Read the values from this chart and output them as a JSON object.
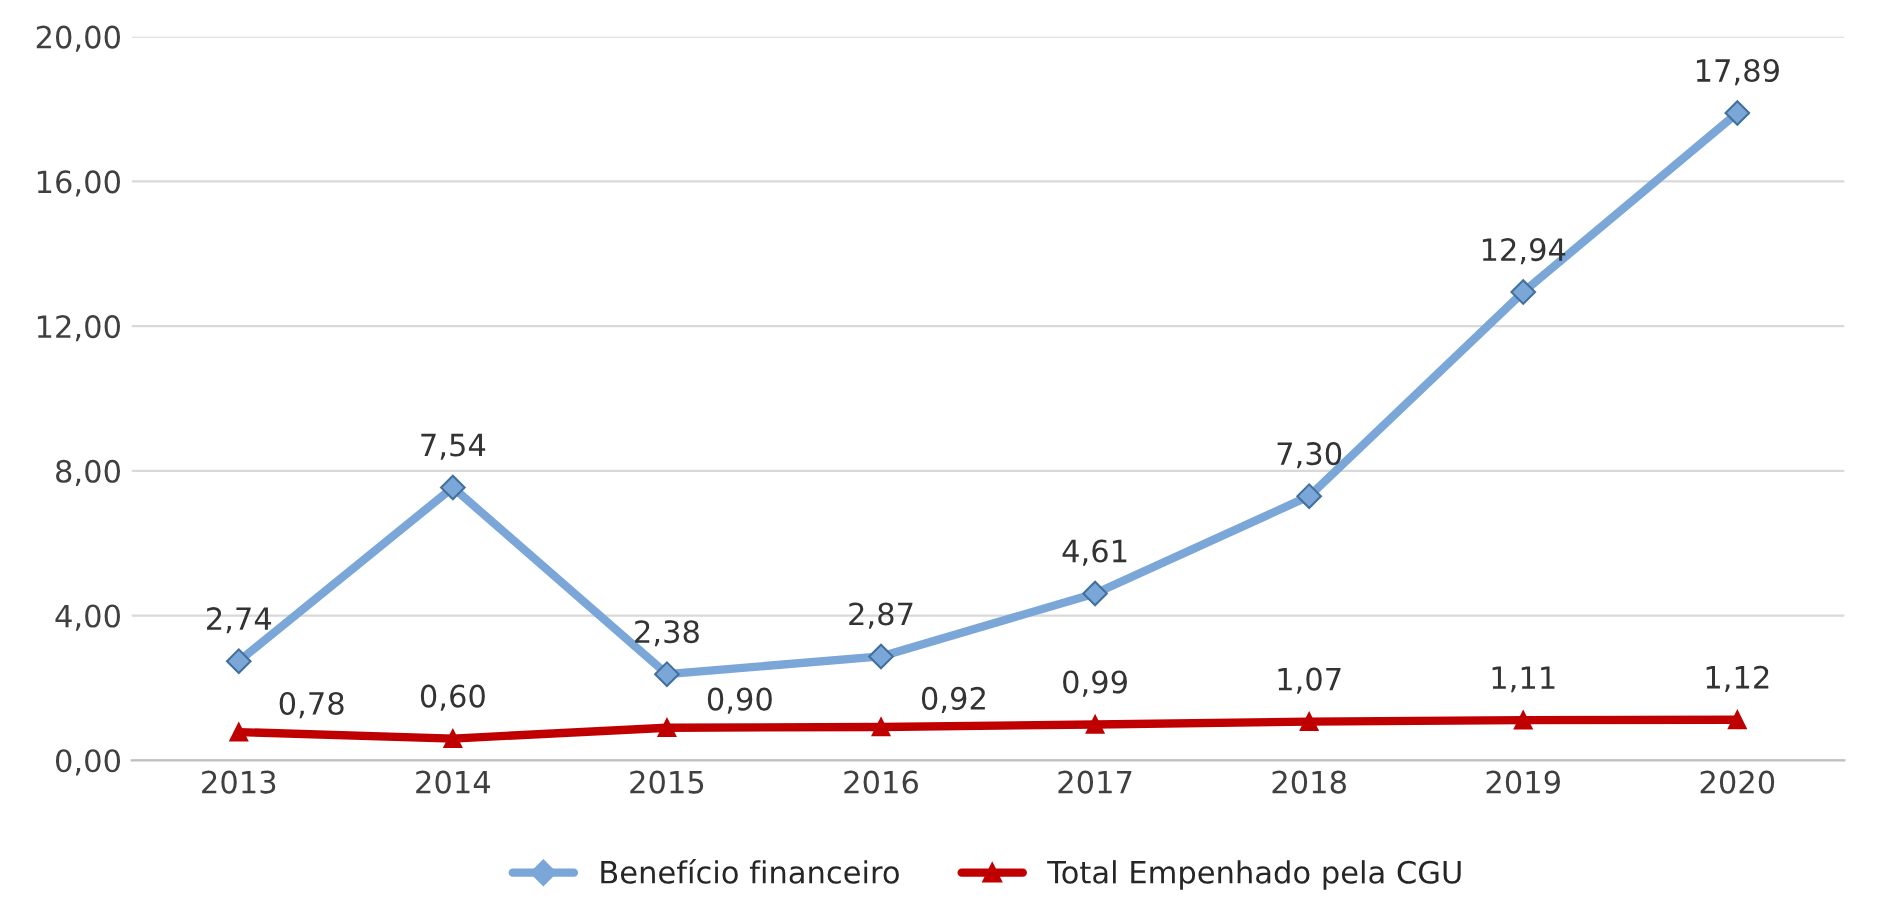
{
  "chart_data": {
    "type": "line",
    "categories": [
      "2013",
      "2014",
      "2015",
      "2016",
      "2017",
      "2018",
      "2019",
      "2020"
    ],
    "series": [
      {
        "name": "Benefício financeiro",
        "color": "#7aa6d8",
        "marker": "diamond",
        "values": [
          2.74,
          7.54,
          2.38,
          2.87,
          4.61,
          7.3,
          12.94,
          17.89
        ],
        "value_labels": [
          "2,74",
          "7,54",
          "2,38",
          "2,87",
          "4,61",
          "7,30",
          "12,94",
          "17,89"
        ]
      },
      {
        "name": "Total Empenhado pela CGU",
        "color": "#c00000",
        "marker": "triangle",
        "values": [
          0.78,
          0.6,
          0.9,
          0.92,
          0.99,
          1.07,
          1.11,
          1.12
        ],
        "value_labels": [
          "0,78",
          "0,60",
          "0,90",
          "0,92",
          "0,99",
          "1,07",
          "1,11",
          "1,12"
        ]
      }
    ],
    "ylim": [
      0,
      20
    ],
    "yticks": [
      {
        "value": 0,
        "label": "0,00"
      },
      {
        "value": 4,
        "label": "4,00"
      },
      {
        "value": 8,
        "label": "8,00"
      },
      {
        "value": 12,
        "label": "12,00"
      },
      {
        "value": 16,
        "label": "16,00"
      },
      {
        "value": 20,
        "label": "20,00"
      }
    ],
    "grid": "y",
    "legend": "bottom",
    "line_style": "solid"
  }
}
